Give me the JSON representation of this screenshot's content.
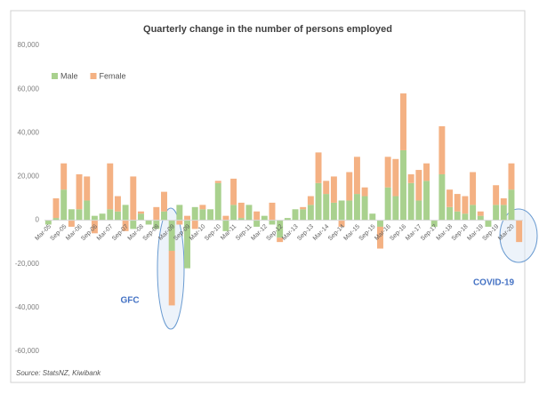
{
  "chart_data": {
    "type": "stacked_bar",
    "title": "Quarterly change in the number of persons employed",
    "source": "Source: StatsNZ, Kiwibank",
    "annotations": [
      "GFC",
      "COVID-19"
    ],
    "categories": [
      "Mar-05",
      null,
      "Sep-05",
      null,
      "Mar-06",
      null,
      "Sep-06",
      null,
      "Mar-07",
      null,
      "Sep-07",
      null,
      "Mar-08",
      null,
      "Sep-08",
      null,
      "Mar-09",
      null,
      "Sep-09",
      null,
      "Mar-10",
      null,
      "Sep-10",
      null,
      "Mar-11",
      null,
      "Sep-11",
      null,
      "Mar-12",
      null,
      "Sep-12",
      null,
      "Mar-13",
      null,
      "Sep-13",
      null,
      "Mar-14",
      null,
      "Sep-14",
      null,
      "Mar-15",
      null,
      "Sep-15",
      null,
      "Mar-16",
      null,
      "Sep-16",
      null,
      "Mar-17",
      null,
      "Sep-17",
      null,
      "Mar-18",
      null,
      "Sep-18",
      null,
      "Mar-19",
      null,
      "Sep-19",
      null,
      "Mar-20",
      null
    ],
    "series": [
      {
        "name": "Male",
        "color": "#a9d18e",
        "values": [
          -2000,
          1000,
          14000,
          5000,
          5000,
          9000,
          2000,
          3000,
          5000,
          4000,
          7000,
          -4000,
          3000,
          -2000,
          -4000,
          4000,
          -14000,
          7000,
          -22000,
          6000,
          5000,
          5000,
          17000,
          -5000,
          7000,
          1000,
          7000,
          -3000,
          2000,
          -2000,
          -8000,
          1000,
          5000,
          5000,
          7000,
          17000,
          12000,
          8000,
          9000,
          9000,
          12000,
          11000,
          3000,
          -3000,
          15000,
          11000,
          32000,
          17000,
          9000,
          18000,
          -3000,
          21000,
          6000,
          4000,
          3000,
          7000,
          2000,
          -3000,
          7000,
          7000,
          14000,
          0
        ]
      },
      {
        "name": "Female",
        "color": "#f4b183",
        "values": [
          0,
          9000,
          12000,
          -3000,
          16000,
          11000,
          -6000,
          0,
          21000,
          7000,
          -5000,
          20000,
          1000,
          0,
          6000,
          9000,
          -25000,
          -2000,
          2000,
          -4000,
          2000,
          0,
          1000,
          2000,
          12000,
          7000,
          0,
          4000,
          0,
          8000,
          -2000,
          0,
          0,
          1000,
          4000,
          14000,
          6000,
          12000,
          -3000,
          13000,
          17000,
          4000,
          0,
          -10000,
          14000,
          17000,
          26000,
          4000,
          14000,
          8000,
          0,
          22000,
          8000,
          8000,
          8000,
          15000,
          2000,
          0,
          9000,
          3000,
          12000,
          -10000
        ]
      }
    ],
    "ylim": [
      -60000,
      80000
    ],
    "yticks": [
      {
        "value": -60000,
        "label": "-60,000"
      },
      {
        "value": -40000,
        "label": "-40,000"
      },
      {
        "value": -20000,
        "label": "-20,000"
      },
      0,
      {
        "value": 20000,
        "label": "20,000"
      },
      {
        "value": 40000,
        "label": "40,000"
      },
      {
        "value": 60000,
        "label": "60,000"
      },
      {
        "value": 80000,
        "label": "80,000"
      }
    ],
    "grid": false,
    "legend": "top-left"
  }
}
